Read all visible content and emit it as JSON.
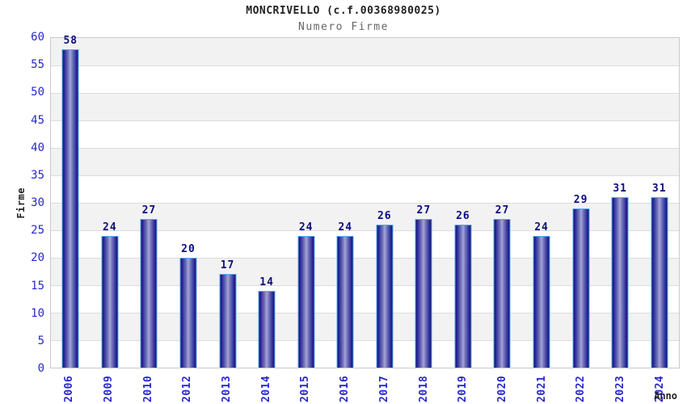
{
  "chart_data": {
    "type": "bar",
    "title": "MONCRIVELLO (c.f.00368980025)",
    "subtitle": "Numero Firme",
    "xlabel": "Anno",
    "ylabel": "Firme",
    "categories": [
      "2006",
      "2009",
      "2010",
      "2012",
      "2013",
      "2014",
      "2015",
      "2016",
      "2017",
      "2018",
      "2019",
      "2020",
      "2021",
      "2022",
      "2023",
      "2024"
    ],
    "values": [
      58,
      24,
      27,
      20,
      17,
      14,
      24,
      24,
      26,
      27,
      26,
      27,
      24,
      29,
      31,
      31
    ],
    "ylim": [
      0,
      60
    ],
    "ytick_step": 5,
    "yticks": [
      0,
      5,
      10,
      15,
      20,
      25,
      30,
      35,
      40,
      45,
      50,
      55,
      60
    ],
    "grid": true,
    "legend": null,
    "colors": {
      "tick_label": "#2727cc",
      "value_label": "#0d0d7e",
      "bar_edge": "#15156b",
      "bar_center": "#a6a6d8",
      "bar_border": "#57a9f2",
      "band_gray": "#f2f2f2",
      "band_white": "#ffffff",
      "grid_line": "#dcdcdc",
      "plot_border": "#c9c9c9",
      "title_color": "#222222",
      "subtitle_color": "#666666"
    }
  }
}
